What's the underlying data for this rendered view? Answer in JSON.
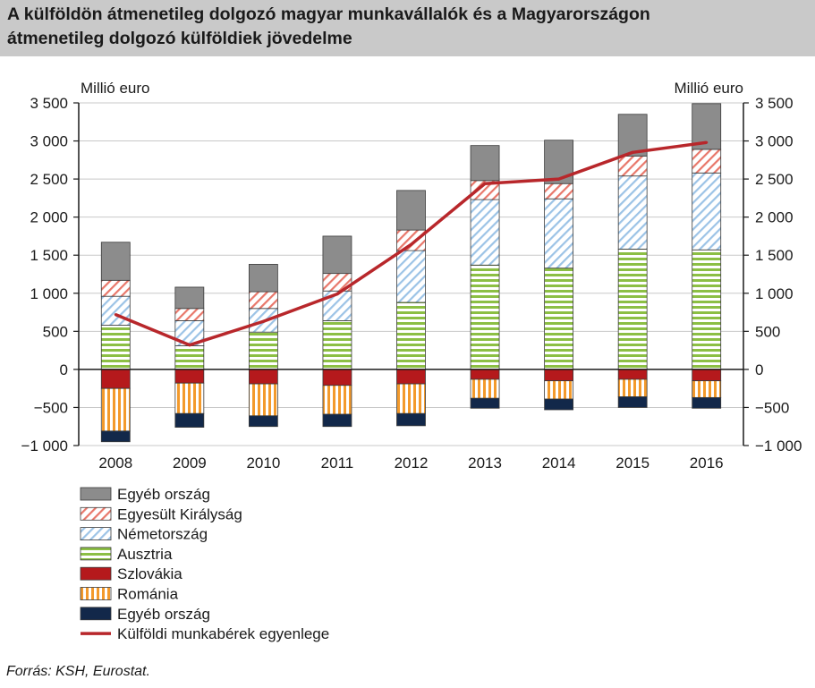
{
  "title": {
    "line1": "A külföldön átmenetileg dolgozó magyar munkavállalók és a Magyarországon",
    "line2": "átmenetileg dolgozó külföldiek jövedelme"
  },
  "source": "Forrás: KSH, Eurostat.",
  "chart_data": {
    "type": "bar",
    "stacked": true,
    "title": "A külföldön átmenetileg dolgozó magyar munkavállalók és a Magyarországon átmenetileg dolgozó külföldiek jövedelme",
    "ylabel_left": "Millió euro",
    "ylabel_right": "Millió euro",
    "ylim": [
      -1000,
      3500
    ],
    "yticks": [
      3500,
      3000,
      2500,
      2000,
      1500,
      1000,
      500,
      0,
      -500,
      -1000
    ],
    "ytick_labels": [
      "3 500",
      "3 000",
      "2 500",
      "2 000",
      "1 500",
      "1 000",
      "500",
      "0",
      "−500",
      "−1 000"
    ],
    "grid": true,
    "categories": [
      "2008",
      "2009",
      "2010",
      "2011",
      "2012",
      "2013",
      "2014",
      "2015",
      "2016"
    ],
    "series": [
      {
        "name": "Ausztria",
        "kind": "positive",
        "color": "#8cbf44",
        "pattern": "hstripes",
        "values": [
          580,
          310,
          490,
          640,
          880,
          1370,
          1330,
          1580,
          1570
        ]
      },
      {
        "name": "Németország",
        "kind": "positive",
        "color": "#9cc3e6",
        "pattern": "diag",
        "values": [
          380,
          330,
          310,
          390,
          680,
          860,
          910,
          960,
          1010
        ]
      },
      {
        "name": "Egyesült Királyság",
        "kind": "positive",
        "color": "#e8776a",
        "pattern": "diag",
        "values": [
          210,
          160,
          220,
          230,
          270,
          250,
          200,
          260,
          310
        ]
      },
      {
        "name": "Egyéb ország",
        "kind": "positive",
        "color": "#8c8c8c",
        "pattern": "solid",
        "values": [
          500,
          280,
          360,
          490,
          520,
          460,
          570,
          550,
          600
        ]
      },
      {
        "name": "Szlovákia",
        "kind": "negative",
        "color": "#b5191c",
        "pattern": "solid",
        "values": [
          -250,
          -180,
          -190,
          -210,
          -190,
          -130,
          -150,
          -130,
          -150
        ]
      },
      {
        "name": "Románia",
        "kind": "negative",
        "color": "#f39a2c",
        "pattern": "vstripes",
        "values": [
          -560,
          -400,
          -420,
          -380,
          -390,
          -250,
          -240,
          -230,
          -220
        ]
      },
      {
        "name": "Egyéb ország",
        "kind": "negative",
        "color": "#12284a",
        "pattern": "solid",
        "values": [
          -140,
          -180,
          -140,
          -160,
          -160,
          -130,
          -140,
          -140,
          -140
        ]
      },
      {
        "name": "Külföldi munkabérek egyenlege",
        "kind": "line",
        "color": "#b8272b",
        "values": [
          720,
          320,
          630,
          990,
          1640,
          2440,
          2500,
          2850,
          2980
        ]
      }
    ],
    "legend": {
      "position": "bottom-left",
      "order": [
        3,
        2,
        1,
        0,
        4,
        5,
        6,
        7
      ]
    }
  }
}
